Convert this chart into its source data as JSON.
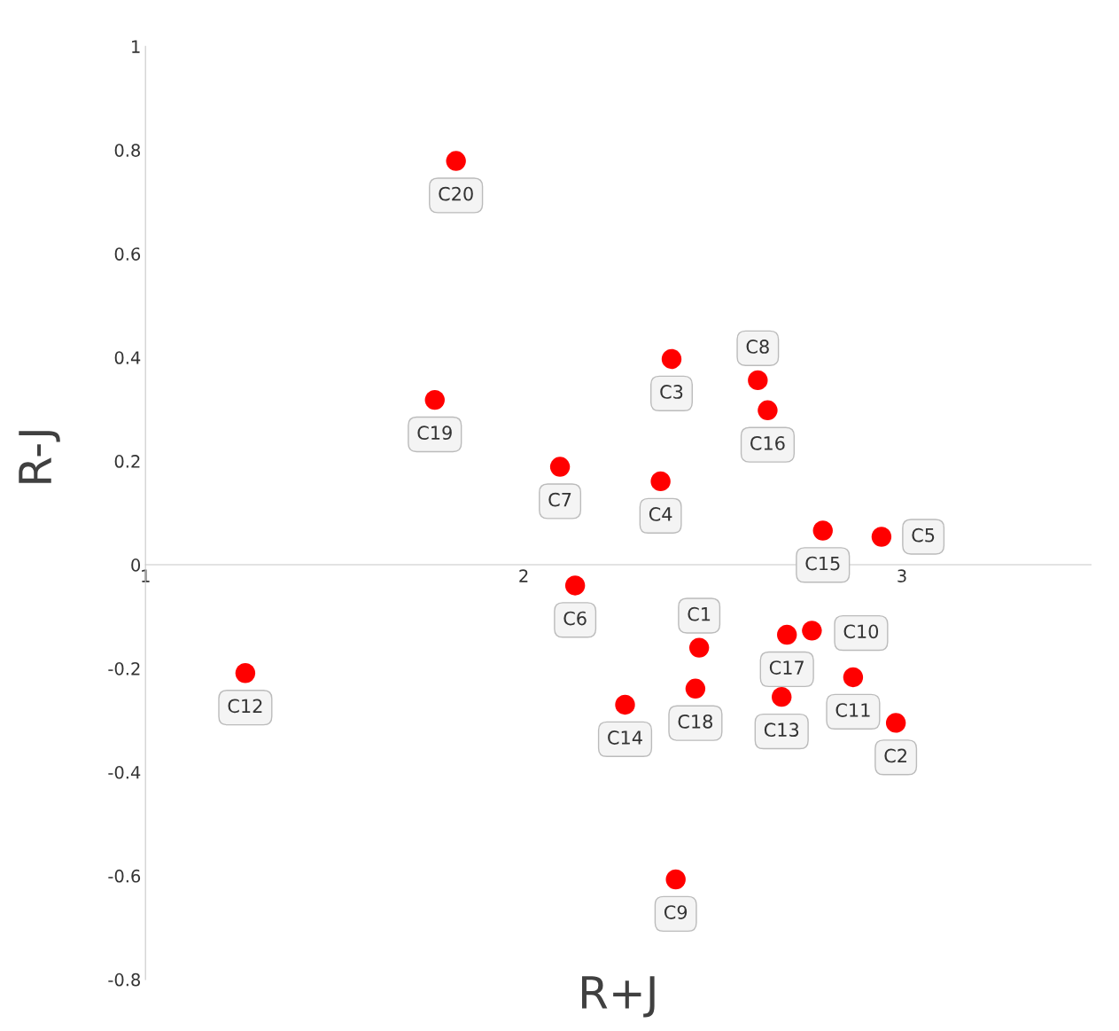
{
  "chart_data": {
    "type": "scatter",
    "xlabel": "R+J",
    "ylabel": "R-J",
    "x": [
      2.464,
      2.984,
      2.391,
      2.362,
      2.946,
      2.136,
      2.096,
      2.619,
      2.402,
      2.762,
      2.871,
      1.264,
      2.682,
      2.268,
      2.791,
      2.645,
      2.696,
      2.454,
      1.765,
      1.821
    ],
    "series": [
      {
        "color": "#ff0000",
        "values": [
          -0.16,
          -0.305,
          0.397,
          0.161,
          0.054,
          -0.04,
          0.189,
          0.356,
          -0.607,
          -0.127,
          -0.217,
          -0.209,
          -0.255,
          -0.27,
          0.066,
          0.298,
          -0.135,
          -0.239,
          0.318,
          0.779
        ]
      }
    ],
    "annotations": [
      {
        "text": "C1",
        "x": 2.464,
        "y": -0.16
      },
      {
        "text": "C2",
        "x": 2.984,
        "y": -0.305
      },
      {
        "text": "C3",
        "x": 2.391,
        "y": 0.397
      },
      {
        "text": "C4",
        "x": 2.362,
        "y": 0.161
      },
      {
        "text": "C5",
        "x": 2.946,
        "y": 0.054
      },
      {
        "text": "C6",
        "x": 2.136,
        "y": -0.04
      },
      {
        "text": "C7",
        "x": 2.096,
        "y": 0.189
      },
      {
        "text": "C8",
        "x": 2.619,
        "y": 0.356
      },
      {
        "text": "C9",
        "x": 2.402,
        "y": -0.607
      },
      {
        "text": "C10",
        "x": 2.762,
        "y": -0.127
      },
      {
        "text": "C11",
        "x": 2.871,
        "y": -0.217
      },
      {
        "text": "C12",
        "x": 1.264,
        "y": -0.209
      },
      {
        "text": "C13",
        "x": 2.682,
        "y": -0.255
      },
      {
        "text": "C14",
        "x": 2.268,
        "y": -0.27
      },
      {
        "text": "C15",
        "x": 2.791,
        "y": 0.066
      },
      {
        "text": "C16",
        "x": 2.645,
        "y": 0.298
      },
      {
        "text": "C17",
        "x": 2.696,
        "y": -0.135
      },
      {
        "text": "C18",
        "x": 2.454,
        "y": -0.239
      },
      {
        "text": "C19",
        "x": 1.765,
        "y": 0.318
      },
      {
        "text": "C20",
        "x": 1.821,
        "y": 0.779
      }
    ],
    "xlim": [
      1,
      3.5
    ],
    "xticks": [
      1,
      2,
      3
    ],
    "ylim": [
      -0.8,
      1
    ],
    "yticks": [
      -0.8,
      -0.6,
      -0.4,
      -0.2,
      0,
      0.2,
      0.4,
      0.6,
      0.8,
      1
    ],
    "marker": "circle",
    "grid": false
  }
}
